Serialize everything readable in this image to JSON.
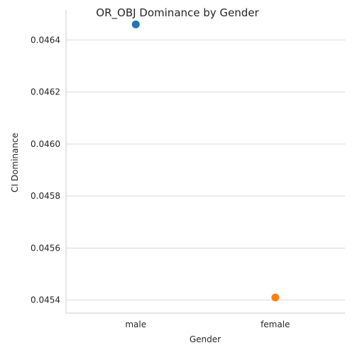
{
  "chart_data": {
    "type": "scatter",
    "title": "OR_OBJ Dominance by Gender",
    "xlabel": "Gender",
    "ylabel": "CI Dominance",
    "categories": [
      "male",
      "female"
    ],
    "values": [
      0.04646,
      0.04541
    ],
    "point_colors": [
      "#1f77b4",
      "#ff7f0e"
    ],
    "ylim": [
      0.04535,
      0.04651
    ],
    "yticks": [
      0.0454,
      0.0456,
      0.0458,
      0.046,
      0.0462,
      0.0464
    ],
    "ytick_labels": [
      "0.0454",
      "0.0456",
      "0.0458",
      "0.0460",
      "0.0462",
      "0.0464"
    ],
    "grid": "horizontal",
    "legend": "none"
  }
}
